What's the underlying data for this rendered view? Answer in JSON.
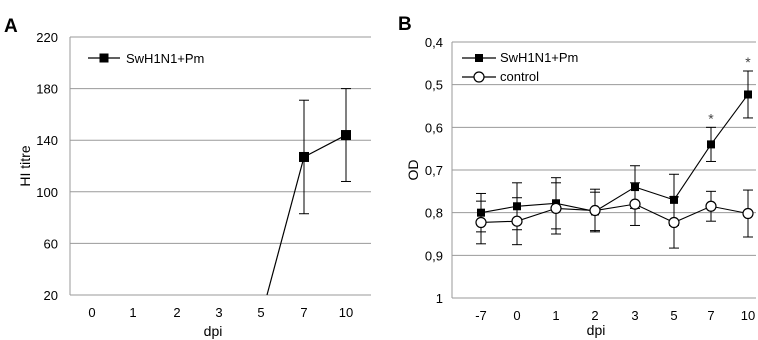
{
  "chart_data": [
    {
      "panel": "A",
      "type": "line",
      "xlabel": "dpi",
      "ylabel": "HI titre",
      "categories": [
        "0",
        "1",
        "2",
        "3",
        "5",
        "7",
        "10"
      ],
      "yticks": [
        "20",
        "60",
        "100",
        "140",
        "180",
        "220"
      ],
      "ylim": [
        20,
        220
      ],
      "grid": true,
      "legend_position": "top-left",
      "series": [
        {
          "name": "SwH1N1+Pm",
          "marker": "filled-square",
          "values": [
            null,
            null,
            null,
            null,
            null,
            127,
            144
          ],
          "error": [
            null,
            null,
            null,
            null,
            null,
            44,
            36
          ],
          "entry_from_below_at": 5
        }
      ]
    },
    {
      "panel": "B",
      "type": "line",
      "xlabel": "dpi",
      "ylabel": "OD",
      "categories": [
        "-7",
        "0",
        "1",
        "2",
        "3",
        "5",
        "7",
        "10"
      ],
      "yticks": [
        "0,4",
        "0,5",
        "0,6",
        "0,7",
        "0,8",
        "0,9",
        "1"
      ],
      "ylim": [
        0.4,
        1.0
      ],
      "y_inverted": true,
      "grid": true,
      "legend_position": "top-left",
      "series": [
        {
          "name": "SwH1N1+Pm",
          "marker": "filled-square",
          "values": [
            0.8,
            0.785,
            0.778,
            0.797,
            0.74,
            0.77,
            0.64,
            0.523
          ],
          "error": [
            0.045,
            0.055,
            0.06,
            0.045,
            0.05,
            0.06,
            0.04,
            0.055
          ]
        },
        {
          "name": "control",
          "marker": "open-circle",
          "values": [
            0.823,
            0.82,
            0.79,
            0.795,
            0.78,
            0.823,
            0.785,
            0.802
          ],
          "error": [
            0.05,
            0.055,
            0.06,
            0.05,
            0.05,
            0.06,
            0.035,
            0.055
          ]
        }
      ],
      "annotations": [
        {
          "x": "7",
          "text": "*"
        },
        {
          "x": "10",
          "text": "*"
        }
      ]
    }
  ]
}
